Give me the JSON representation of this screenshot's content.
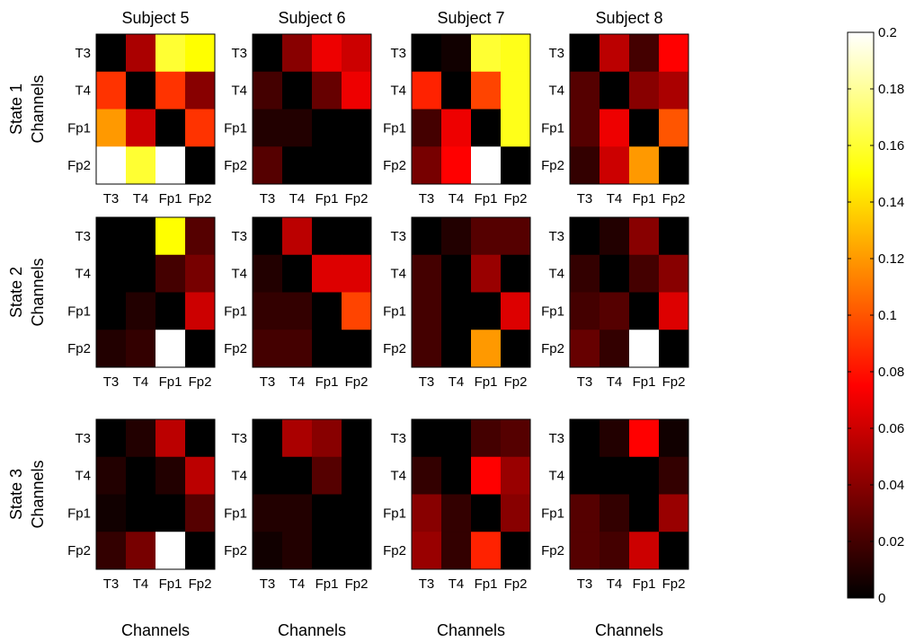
{
  "chart_data": {
    "type": "heatmap",
    "colormap": "hot",
    "color_range": [
      0,
      0.2
    ],
    "colorbar": {
      "placement": "right",
      "ticks": [
        0,
        0.02,
        0.04,
        0.06,
        0.08,
        0.1,
        0.12,
        0.14,
        0.16,
        0.18,
        0.2
      ],
      "tick_labels": [
        "0",
        "0.02",
        "0.04",
        "0.06",
        "0.08",
        "0.1",
        "0.12",
        "0.14",
        "0.16",
        "0.18",
        "0.2"
      ]
    },
    "columns": [
      "Subject 5",
      "Subject 6",
      "Subject 7",
      "Subject 8"
    ],
    "rows": [
      "State 1",
      "State 2",
      "State 3"
    ],
    "row_axis_label": "Channels",
    "column_axis_label": "Channels",
    "channels": [
      "T3",
      "T4",
      "Fp1",
      "Fp2"
    ],
    "matrices": [
      [
        [
          [
            0.0,
            0.05,
            0.16,
            0.15
          ],
          [
            0.09,
            0.0,
            0.09,
            0.04
          ],
          [
            0.12,
            0.06,
            0.0,
            0.09
          ],
          [
            0.2,
            0.16,
            0.2,
            0.0
          ]
        ],
        [
          [
            0.0,
            0.04,
            0.07,
            0.06
          ],
          [
            0.02,
            0.0,
            0.03,
            0.07
          ],
          [
            0.01,
            0.01,
            0.0,
            0.0
          ],
          [
            0.025,
            0.0,
            0.0,
            0.0
          ]
        ],
        [
          [
            0.0,
            0.005,
            0.16,
            0.155
          ],
          [
            0.085,
            0.0,
            0.095,
            0.155
          ],
          [
            0.02,
            0.07,
            0.0,
            0.155
          ],
          [
            0.035,
            0.075,
            0.2,
            0.0
          ]
        ],
        [
          [
            0.0,
            0.055,
            0.02,
            0.075
          ],
          [
            0.025,
            0.0,
            0.04,
            0.05
          ],
          [
            0.025,
            0.07,
            0.0,
            0.1
          ],
          [
            0.015,
            0.06,
            0.12,
            0.0
          ]
        ]
      ],
      [
        [
          [
            0.0,
            0.0,
            0.15,
            0.025
          ],
          [
            0.0,
            0.0,
            0.02,
            0.035
          ],
          [
            0.0,
            0.01,
            0.0,
            0.06
          ],
          [
            0.01,
            0.015,
            0.2,
            0.0
          ]
        ],
        [
          [
            0.0,
            0.055,
            0.0,
            0.0
          ],
          [
            0.01,
            0.0,
            0.065,
            0.065
          ],
          [
            0.015,
            0.015,
            0.0,
            0.095
          ],
          [
            0.02,
            0.02,
            0.0,
            0.0
          ]
        ],
        [
          [
            0.0,
            0.01,
            0.025,
            0.025
          ],
          [
            0.02,
            0.0,
            0.045,
            0.0
          ],
          [
            0.02,
            0.0,
            0.0,
            0.065
          ],
          [
            0.02,
            0.0,
            0.12,
            0.0
          ]
        ],
        [
          [
            0.0,
            0.01,
            0.04,
            0.0
          ],
          [
            0.015,
            0.0,
            0.02,
            0.04
          ],
          [
            0.02,
            0.025,
            0.0,
            0.065
          ],
          [
            0.03,
            0.015,
            0.2,
            0.0
          ]
        ]
      ],
      [
        [
          [
            0.0,
            0.01,
            0.055,
            0.0
          ],
          [
            0.01,
            0.0,
            0.01,
            0.055
          ],
          [
            0.005,
            0.0,
            0.0,
            0.025
          ],
          [
            0.015,
            0.035,
            0.2,
            0.0
          ]
        ],
        [
          [
            0.0,
            0.05,
            0.04,
            0.0
          ],
          [
            0.0,
            0.0,
            0.025,
            0.0
          ],
          [
            0.01,
            0.01,
            0.0,
            0.0
          ],
          [
            0.005,
            0.01,
            0.0,
            0.0
          ]
        ],
        [
          [
            0.0,
            0.0,
            0.02,
            0.025
          ],
          [
            0.015,
            0.0,
            0.075,
            0.045
          ],
          [
            0.04,
            0.015,
            0.0,
            0.04
          ],
          [
            0.045,
            0.015,
            0.085,
            0.0
          ]
        ],
        [
          [
            0.0,
            0.01,
            0.075,
            0.005
          ],
          [
            0.0,
            0.0,
            0.0,
            0.015
          ],
          [
            0.025,
            0.015,
            0.0,
            0.045
          ],
          [
            0.025,
            0.02,
            0.06,
            0.0
          ]
        ]
      ]
    ]
  }
}
